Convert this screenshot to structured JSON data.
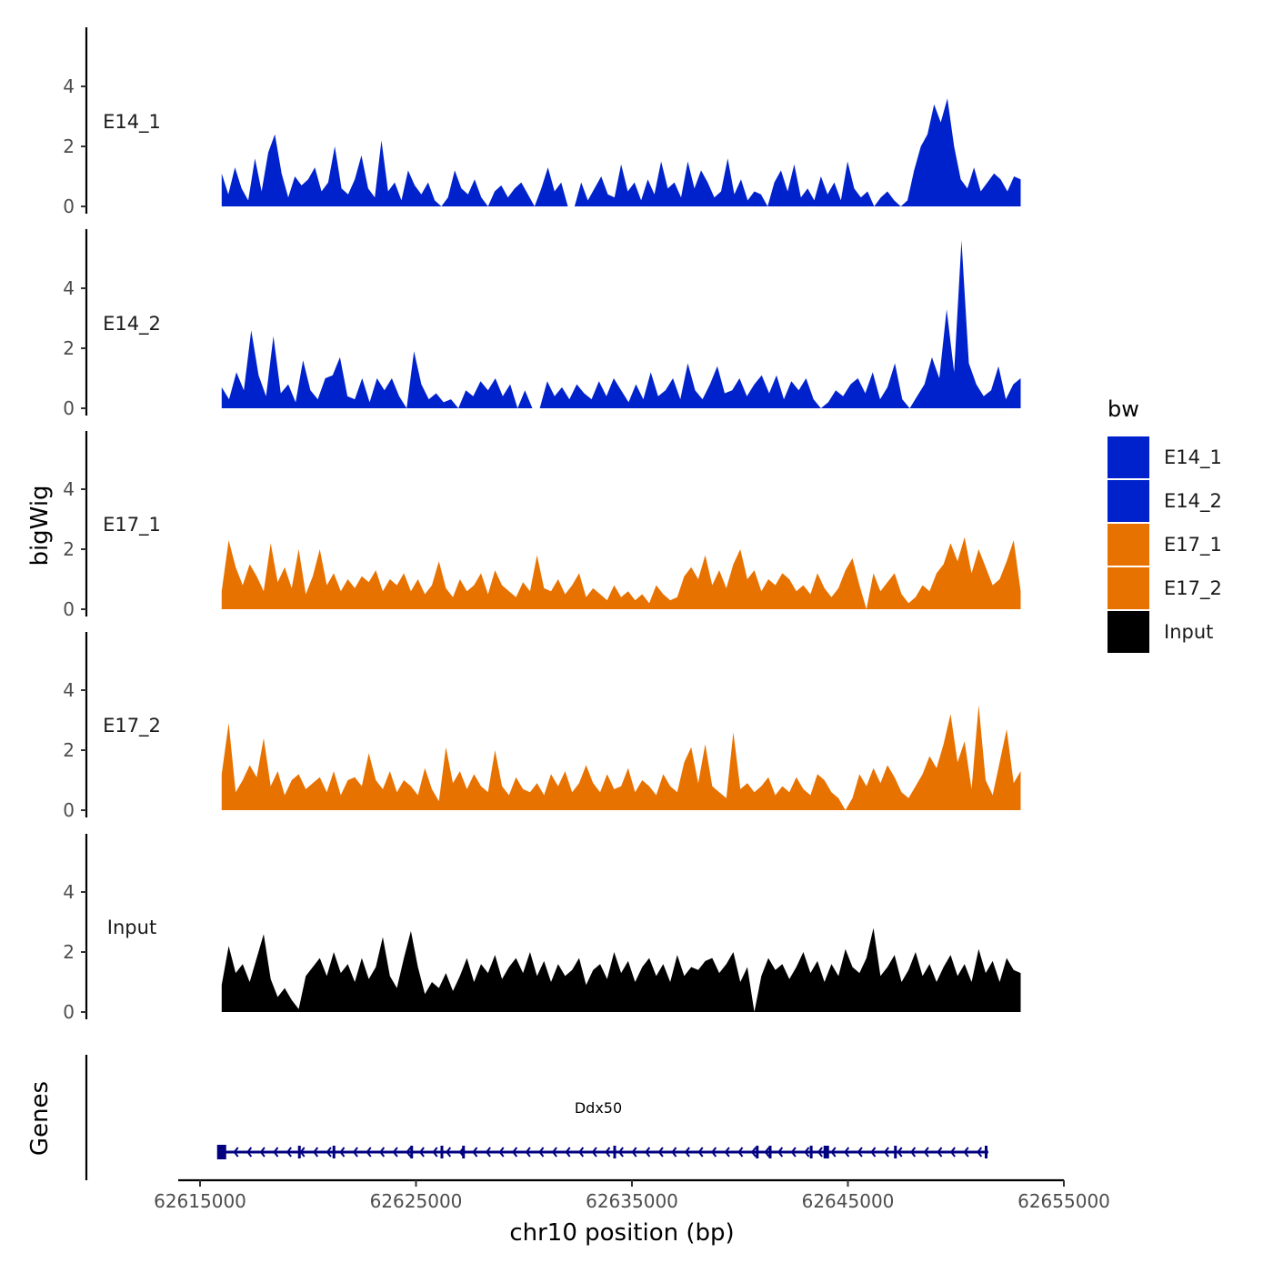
{
  "chart_data": {
    "type": "area",
    "title": "",
    "ylabel": "bigWig",
    "xlabel": "chr10 position (bp)",
    "xlim": [
      62615000,
      62655000
    ],
    "ylim": [
      0,
      6
    ],
    "y_ticks": [
      0,
      2,
      4
    ],
    "x_ticks": [
      62615000,
      62625000,
      62635000,
      62645000,
      62655000
    ],
    "x_tick_labels": [
      "62615000",
      "62625000",
      "62635000",
      "62645000",
      "62655000"
    ],
    "legend": {
      "title": "bw",
      "position": "right",
      "entries": [
        {
          "label": "E14_1",
          "color": "#0022CC"
        },
        {
          "label": "E14_2",
          "color": "#0022CC"
        },
        {
          "label": "E17_1",
          "color": "#E87200"
        },
        {
          "label": "E17_2",
          "color": "#E87200"
        },
        {
          "label": "Input",
          "color": "#000000"
        }
      ]
    },
    "series": [
      {
        "name": "E14_1",
        "color": "#0022CC",
        "x_start": 62616000,
        "x_end": 62653000,
        "values": [
          1.1,
          0.4,
          1.3,
          0.6,
          0.2,
          1.6,
          0.5,
          1.8,
          2.4,
          1.1,
          0.3,
          1.0,
          0.7,
          0.9,
          1.3,
          0.5,
          0.8,
          2.0,
          0.6,
          0.4,
          0.9,
          1.7,
          0.6,
          0.3,
          2.2,
          0.5,
          0.8,
          0.2,
          1.2,
          0.7,
          0.4,
          0.8,
          0.2,
          0.0,
          0.3,
          1.2,
          0.6,
          0.4,
          0.9,
          0.3,
          0.0,
          0.5,
          0.7,
          0.3,
          0.6,
          0.8,
          0.4,
          0.0,
          0.6,
          1.3,
          0.5,
          0.8,
          0.0,
          0.0,
          0.8,
          0.2,
          0.6,
          1.0,
          0.4,
          0.3,
          1.4,
          0.5,
          0.8,
          0.2,
          0.9,
          0.4,
          1.5,
          0.6,
          0.8,
          0.3,
          1.5,
          0.6,
          1.2,
          0.8,
          0.3,
          0.5,
          1.6,
          0.4,
          0.9,
          0.2,
          0.5,
          0.4,
          0.0,
          0.8,
          1.2,
          0.5,
          1.4,
          0.3,
          0.6,
          0.2,
          1.0,
          0.4,
          0.8,
          0.2,
          1.5,
          0.6,
          0.3,
          0.5,
          0.0,
          0.3,
          0.5,
          0.2,
          0.0,
          0.2,
          1.2,
          2.0,
          2.4,
          3.4,
          2.8,
          3.6,
          2.0,
          0.9,
          0.6,
          1.3,
          0.5,
          0.8,
          1.1,
          0.9,
          0.5,
          1.0,
          0.9
        ]
      },
      {
        "name": "E14_2",
        "color": "#0022CC",
        "x_start": 62616000,
        "x_end": 62653000,
        "values": [
          0.7,
          0.3,
          1.2,
          0.6,
          2.6,
          1.1,
          0.4,
          2.4,
          0.5,
          0.8,
          0.2,
          1.6,
          0.6,
          0.3,
          1.0,
          1.1,
          1.7,
          0.4,
          0.3,
          1.0,
          0.2,
          1.0,
          0.6,
          1.0,
          0.4,
          0.0,
          1.9,
          0.8,
          0.3,
          0.5,
          0.2,
          0.3,
          0.0,
          0.6,
          0.4,
          0.9,
          0.6,
          1.0,
          0.4,
          0.8,
          0.0,
          0.6,
          0.0,
          0.0,
          0.9,
          0.4,
          0.7,
          0.3,
          0.8,
          0.5,
          0.3,
          0.9,
          0.4,
          1.0,
          0.6,
          0.2,
          0.8,
          0.3,
          1.2,
          0.4,
          0.6,
          1.0,
          0.3,
          1.5,
          0.6,
          0.3,
          0.8,
          1.4,
          0.5,
          0.6,
          1.0,
          0.4,
          0.8,
          1.1,
          0.5,
          1.1,
          0.3,
          0.9,
          0.6,
          1.0,
          0.3,
          0.0,
          0.2,
          0.6,
          0.4,
          0.8,
          1.0,
          0.5,
          1.2,
          0.3,
          0.7,
          1.5,
          0.3,
          0.0,
          0.4,
          0.8,
          1.7,
          1.0,
          3.3,
          1.2,
          5.6,
          1.5,
          0.8,
          0.4,
          0.6,
          1.4,
          0.3,
          0.8,
          1.0
        ]
      },
      {
        "name": "E17_1",
        "color": "#E87200",
        "x_start": 62616000,
        "x_end": 62653000,
        "values": [
          0.6,
          2.3,
          1.4,
          0.8,
          1.5,
          1.1,
          0.6,
          2.2,
          0.9,
          1.4,
          0.7,
          2.0,
          0.5,
          1.1,
          2.0,
          0.8,
          1.2,
          0.6,
          1.0,
          0.7,
          1.1,
          0.9,
          1.3,
          0.6,
          1.0,
          0.8,
          1.2,
          0.6,
          1.0,
          0.5,
          0.8,
          1.6,
          0.7,
          0.4,
          1.0,
          0.6,
          0.8,
          1.2,
          0.5,
          1.3,
          0.8,
          0.6,
          0.4,
          0.9,
          0.6,
          1.8,
          0.7,
          0.6,
          1.0,
          0.5,
          0.8,
          1.2,
          0.4,
          0.7,
          0.5,
          0.3,
          0.8,
          0.4,
          0.6,
          0.3,
          0.5,
          0.2,
          0.8,
          0.5,
          0.3,
          0.4,
          1.1,
          1.4,
          1.0,
          1.8,
          0.8,
          1.3,
          0.7,
          1.5,
          2.0,
          1.0,
          1.3,
          0.6,
          1.0,
          0.8,
          1.2,
          1.0,
          0.6,
          0.8,
          0.5,
          1.2,
          0.7,
          0.4,
          0.7,
          1.3,
          1.7,
          0.8,
          0.0,
          1.2,
          0.6,
          0.9,
          1.2,
          0.5,
          0.2,
          0.4,
          0.8,
          0.6,
          1.2,
          1.5,
          2.2,
          1.6,
          2.4,
          1.2,
          2.0,
          1.4,
          0.8,
          1.0,
          1.6,
          2.3,
          0.6
        ]
      },
      {
        "name": "E17_2",
        "color": "#E87200",
        "x_start": 62616000,
        "x_end": 62653000,
        "values": [
          1.2,
          2.9,
          0.6,
          1.0,
          1.5,
          1.1,
          2.4,
          0.8,
          1.3,
          0.5,
          1.0,
          1.2,
          0.7,
          0.9,
          1.1,
          0.6,
          1.3,
          0.5,
          1.0,
          1.1,
          0.8,
          1.9,
          1.0,
          0.7,
          1.3,
          0.6,
          1.0,
          0.8,
          0.5,
          1.4,
          0.7,
          0.3,
          2.1,
          0.9,
          1.3,
          0.7,
          1.2,
          0.8,
          0.6,
          2.0,
          0.8,
          0.5,
          1.1,
          0.7,
          0.6,
          0.9,
          0.5,
          1.2,
          0.8,
          1.3,
          0.6,
          0.9,
          1.5,
          0.9,
          0.6,
          1.2,
          0.7,
          0.8,
          1.4,
          0.6,
          1.0,
          0.8,
          0.5,
          1.2,
          0.8,
          0.6,
          1.6,
          2.1,
          0.9,
          2.2,
          0.8,
          0.6,
          0.4,
          2.6,
          0.7,
          0.9,
          0.6,
          0.8,
          1.1,
          0.5,
          0.8,
          0.6,
          1.1,
          0.7,
          0.5,
          1.2,
          1.0,
          0.6,
          0.4,
          0.0,
          0.4,
          1.2,
          0.8,
          1.4,
          0.9,
          1.5,
          1.1,
          0.6,
          0.4,
          0.8,
          1.2,
          1.8,
          1.4,
          2.2,
          3.2,
          1.6,
          2.3,
          0.7,
          3.5,
          1.0,
          0.5,
          1.6,
          2.7,
          0.9,
          1.3
        ]
      },
      {
        "name": "Input",
        "color": "#000000",
        "x_start": 62616000,
        "x_end": 62653000,
        "values": [
          0.9,
          2.2,
          1.3,
          1.6,
          1.0,
          1.8,
          2.6,
          1.1,
          0.5,
          0.8,
          0.4,
          0.1,
          1.2,
          1.5,
          1.8,
          1.2,
          2.0,
          1.3,
          1.6,
          1.0,
          1.8,
          1.1,
          1.5,
          2.5,
          1.2,
          0.8,
          1.8,
          2.7,
          1.5,
          0.6,
          1.0,
          0.8,
          1.3,
          0.7,
          1.2,
          1.8,
          1.0,
          1.6,
          1.3,
          1.9,
          1.1,
          1.5,
          1.8,
          1.3,
          2.0,
          1.2,
          1.7,
          1.0,
          1.6,
          1.2,
          1.4,
          1.8,
          0.9,
          1.4,
          1.6,
          1.1,
          2.0,
          1.3,
          1.7,
          1.0,
          1.5,
          1.8,
          1.2,
          1.6,
          1.0,
          1.9,
          1.2,
          1.5,
          1.4,
          1.7,
          1.8,
          1.3,
          1.6,
          2.0,
          1.0,
          1.5,
          0.0,
          1.2,
          1.8,
          1.4,
          1.6,
          1.1,
          1.5,
          2.0,
          1.3,
          1.7,
          1.0,
          1.6,
          1.2,
          2.1,
          1.5,
          1.3,
          1.8,
          2.8,
          1.2,
          1.5,
          1.9,
          1.0,
          1.4,
          2.0,
          1.2,
          1.6,
          1.0,
          1.5,
          1.9,
          1.2,
          1.6,
          1.0,
          2.1,
          1.3,
          1.7,
          1.0,
          1.8,
          1.4,
          1.3
        ]
      }
    ],
    "genes": {
      "strip_label": "Genes",
      "name": "Ddx50",
      "strand": "-",
      "start": 62616000,
      "end": 62651500,
      "color": "#000080",
      "exons": [
        62616000,
        62619600,
        62621200,
        62624800,
        62626200,
        62627200,
        62634200,
        62640800,
        62641400,
        62643300,
        62644000,
        62647200,
        62651400
      ]
    }
  }
}
